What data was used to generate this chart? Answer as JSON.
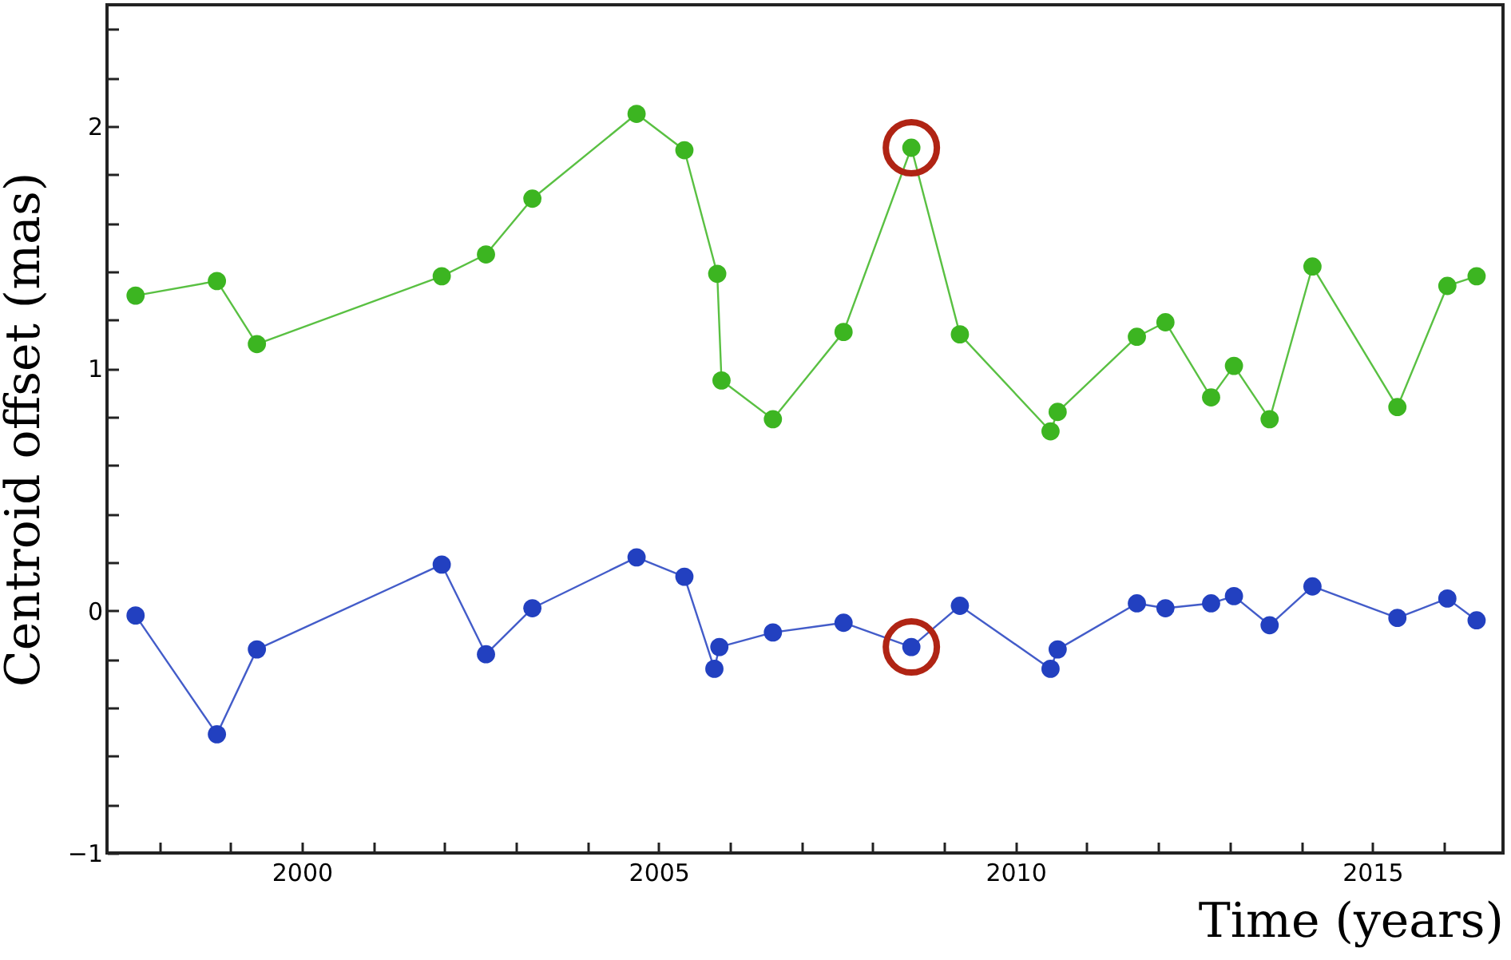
{
  "chart_data": {
    "type": "line",
    "xlabel": "Time (years)",
    "ylabel": "Centroid offset  (mas)",
    "xlim": [
      1997.27,
      2016.83
    ],
    "ylim": [
      -1,
      2.5
    ],
    "marker": "circle",
    "grid": false,
    "xticks": [
      {
        "value": 1998,
        "label": null
      },
      {
        "value": 1999,
        "label": null
      },
      2000,
      {
        "value": 2001,
        "label": null
      },
      {
        "value": 2002,
        "label": null
      },
      {
        "value": 2003,
        "label": null
      },
      {
        "value": 2004,
        "label": null
      },
      2005,
      {
        "value": 2006,
        "label": null
      },
      {
        "value": 2007,
        "label": null
      },
      {
        "value": 2008,
        "label": null
      },
      {
        "value": 2009,
        "label": null
      },
      2010,
      {
        "value": 2011,
        "label": null
      },
      {
        "value": 2012,
        "label": null
      },
      {
        "value": 2013,
        "label": null
      },
      {
        "value": 2014,
        "label": null
      },
      2015,
      {
        "value": 2016,
        "label": null
      }
    ],
    "yticks": [
      {
        "value": -1,
        "label": "−1"
      },
      {
        "value": -0.8,
        "label": null
      },
      {
        "value": -0.6,
        "label": null
      },
      {
        "value": -0.4,
        "label": null
      },
      {
        "value": -0.2,
        "label": null
      },
      0,
      {
        "value": 0.2,
        "label": null
      },
      {
        "value": 0.4,
        "label": null
      },
      {
        "value": 0.6,
        "label": null
      },
      {
        "value": 0.8,
        "label": null
      },
      1,
      {
        "value": 1.2,
        "label": null
      },
      {
        "value": 1.4,
        "label": null
      },
      {
        "value": 1.6,
        "label": null
      },
      {
        "value": 1.8,
        "label": null
      },
      2,
      {
        "value": 2.2,
        "label": null
      },
      {
        "value": 2.4,
        "label": null
      }
    ],
    "x": [
      1997.67,
      1998.81,
      1999.37,
      2001.96,
      2002.58,
      2003.23,
      2004.69,
      2005.36,
      2005.82,
      2005.88,
      2006.6,
      2007.59,
      2008.54,
      2009.22,
      2010.49,
      2010.59,
      2011.7,
      2012.1,
      2012.74,
      2013.06,
      2013.56,
      2014.16,
      2015.35,
      2016.05,
      2016.46
    ],
    "series": [
      {
        "color": "#3cb521",
        "values": [
          1.3,
          1.36,
          1.1,
          1.38,
          1.47,
          1.7,
          2.05,
          1.9,
          1.39,
          0.95,
          0.79,
          1.15,
          1.91,
          1.14,
          0.74,
          0.82,
          1.13,
          1.19,
          0.88,
          1.01,
          0.79,
          1.42,
          0.84,
          1.34,
          1.38
        ]
      },
      {
        "color": "#2240c0",
        "x": [
          1997.67,
          1998.81,
          1999.37,
          2001.96,
          2002.58,
          2003.23,
          2004.69,
          2005.36,
          2005.78,
          2005.85,
          2006.6,
          2007.59,
          2008.54,
          2009.22,
          2010.49,
          2010.59,
          2011.7,
          2012.1,
          2012.74,
          2013.06,
          2013.56,
          2014.16,
          2015.35,
          2016.05,
          2016.46
        ],
        "values": [
          -0.02,
          -0.51,
          -0.16,
          0.19,
          -0.18,
          0.01,
          0.22,
          0.14,
          -0.24,
          -0.15,
          -0.09,
          -0.05,
          -0.15,
          0.02,
          -0.24,
          -0.16,
          0.03,
          0.01,
          0.03,
          0.06,
          -0.06,
          0.1,
          -0.03,
          0.05,
          -0.04
        ]
      }
    ]
  }
}
